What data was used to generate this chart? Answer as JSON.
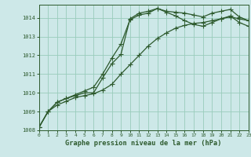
{
  "title": "Graphe pression niveau de la mer (hPa)",
  "bg_color": "#cde8e8",
  "grid_color": "#99ccbb",
  "line_color": "#2d5a2d",
  "xlim": [
    0,
    23
  ],
  "ylim": [
    1008,
    1014.7
  ],
  "yticks": [
    1008,
    1009,
    1010,
    1011,
    1012,
    1013,
    1014
  ],
  "xticks": [
    0,
    1,
    2,
    3,
    4,
    5,
    6,
    7,
    8,
    9,
    10,
    11,
    12,
    13,
    14,
    15,
    16,
    17,
    18,
    19,
    20,
    21,
    22,
    23
  ],
  "series1": {
    "x": [
      0,
      1,
      2,
      3,
      4,
      5,
      6,
      7,
      8,
      9,
      10,
      11,
      12,
      13,
      14,
      15,
      16,
      17,
      18,
      19,
      20,
      21,
      22,
      23
    ],
    "y": [
      1008.15,
      1009.0,
      1009.5,
      1009.7,
      1009.85,
      1010.0,
      1010.0,
      1010.8,
      1011.55,
      1012.05,
      1013.95,
      1014.25,
      1014.35,
      1014.5,
      1014.35,
      1014.3,
      1014.25,
      1014.15,
      1014.05,
      1014.25,
      1014.35,
      1014.45,
      1014.05,
      1013.85
    ]
  },
  "series2": {
    "x": [
      0,
      1,
      2,
      3,
      4,
      5,
      6,
      7,
      8,
      9,
      10,
      11,
      12,
      13,
      14,
      15,
      16,
      17,
      18,
      19,
      20,
      21,
      22,
      23
    ],
    "y": [
      1008.15,
      1009.0,
      1009.35,
      1009.55,
      1009.75,
      1009.85,
      1009.95,
      1010.15,
      1010.45,
      1011.0,
      1011.5,
      1012.0,
      1012.5,
      1012.9,
      1013.2,
      1013.45,
      1013.6,
      1013.7,
      1013.75,
      1013.85,
      1013.95,
      1014.05,
      1013.95,
      1013.85
    ]
  },
  "series3": {
    "x": [
      0,
      1,
      2,
      3,
      4,
      5,
      6,
      7,
      8,
      9,
      10,
      11,
      12,
      13,
      14,
      15,
      16,
      17,
      18,
      19,
      20,
      21,
      22,
      23
    ],
    "y": [
      1008.15,
      1009.0,
      1009.5,
      1009.7,
      1009.9,
      1010.1,
      1010.3,
      1011.0,
      1011.85,
      1012.6,
      1013.9,
      1014.15,
      1014.25,
      1014.5,
      1014.3,
      1014.1,
      1013.85,
      1013.65,
      1013.55,
      1013.75,
      1013.95,
      1014.1,
      1013.75,
      1013.55
    ]
  }
}
